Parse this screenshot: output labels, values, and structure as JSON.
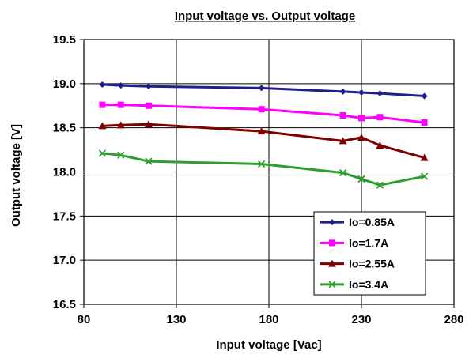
{
  "chart_data": {
    "type": "line",
    "title": "Input voltage vs. Output voltage",
    "xlabel": "Input voltage [Vac]",
    "ylabel": "Output voltage [V]",
    "xlim": [
      80,
      280
    ],
    "ylim": [
      16.5,
      19.5
    ],
    "x_ticks": [
      80,
      130,
      180,
      230,
      280
    ],
    "y_ticks": [
      16.5,
      17.0,
      17.5,
      18.0,
      18.5,
      19.0,
      19.5
    ],
    "x_tick_labels": [
      "80",
      "130",
      "180",
      "230",
      "280"
    ],
    "y_tick_labels": [
      "16.5",
      "17.0",
      "17.5",
      "18.0",
      "18.5",
      "19.0",
      "19.5"
    ],
    "grid": true,
    "legend_position": "bottom-right",
    "series": [
      {
        "name": "Io=0.85A",
        "color": "#1f1f8c",
        "marker": "diamond",
        "x": [
          90,
          100,
          115,
          176,
          220,
          230,
          240,
          264
        ],
        "y": [
          18.99,
          18.98,
          18.97,
          18.95,
          18.91,
          18.9,
          18.89,
          18.86
        ]
      },
      {
        "name": "Io=1.7A",
        "color": "#ff00ff",
        "marker": "square",
        "x": [
          90,
          100,
          115,
          176,
          220,
          230,
          240,
          264
        ],
        "y": [
          18.76,
          18.76,
          18.75,
          18.71,
          18.64,
          18.61,
          18.62,
          18.56
        ]
      },
      {
        "name": "Io=2.55A",
        "color": "#800000",
        "marker": "triangle",
        "x": [
          90,
          100,
          115,
          176,
          220,
          230,
          240,
          264
        ],
        "y": [
          18.52,
          18.53,
          18.54,
          18.46,
          18.35,
          18.39,
          18.3,
          18.16
        ]
      },
      {
        "name": "Io=3.4A",
        "color": "#2e9e2e",
        "marker": "x",
        "x": [
          90,
          100,
          115,
          176,
          220,
          230,
          240,
          264
        ],
        "y": [
          18.21,
          18.19,
          18.12,
          18.09,
          17.99,
          17.92,
          17.85,
          17.95
        ]
      }
    ]
  }
}
